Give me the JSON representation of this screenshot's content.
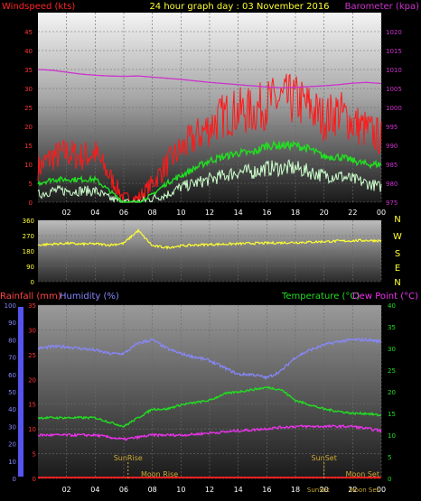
{
  "header": {
    "left_title": "Windspeed (kts)",
    "center_title": "24 hour graph day : 03 November 2016",
    "right_title": "Barometer (kpa)"
  },
  "colors": {
    "wind_gust": "#ff1a1a",
    "wind_avg": "#22dd22",
    "wind_min": "#ccffcc",
    "barometer": "#cc33cc",
    "direction": "#ffff33",
    "rain_axis": "#ff4444",
    "humidity": "#8888ff",
    "temperature": "#22dd22",
    "dewpoint": "#ee33ee",
    "rainfall": "#ff2222",
    "event": "#ccaa33"
  },
  "chart_data": [
    {
      "type": "line",
      "title": "24 hour graph day : 03 November 2016",
      "ylabel": "Windspeed (kts)",
      "y2label": "Barometer (kpa)",
      "ylim": [
        0,
        50
      ],
      "y2lim": [
        975,
        1025
      ],
      "yticks": [
        "0",
        "5",
        "10",
        "15",
        "20",
        "25",
        "30",
        "35",
        "40",
        "45"
      ],
      "y2ticks": [
        "975",
        "980",
        "985",
        "990",
        "995",
        "1000",
        "1005",
        "1010",
        "1015",
        "1020"
      ],
      "x_ticks": [
        "02",
        "04",
        "06",
        "08",
        "10",
        "12",
        "14",
        "16",
        "18",
        "20",
        "22",
        "00"
      ],
      "hours": [
        0,
        1,
        2,
        3,
        4,
        5,
        6,
        7,
        8,
        9,
        10,
        11,
        12,
        13,
        14,
        15,
        16,
        17,
        18,
        19,
        20,
        21,
        22,
        23,
        24
      ],
      "series": [
        {
          "role": "gust",
          "values": [
            9,
            12,
            13,
            12,
            13,
            7,
            1,
            1,
            5,
            10,
            14,
            17,
            20,
            23,
            24,
            24,
            26,
            27,
            27,
            25,
            22,
            24,
            21,
            19,
            17
          ]
        },
        {
          "role": "avg",
          "values": [
            5,
            6,
            6,
            6,
            6,
            3,
            0,
            0,
            2,
            5,
            7,
            9,
            11,
            12,
            13,
            13,
            15,
            15,
            15,
            14,
            12,
            12,
            11,
            10,
            10
          ]
        },
        {
          "role": "min",
          "values": [
            2,
            3,
            3,
            3,
            3,
            1,
            0,
            0,
            1,
            2,
            4,
            5,
            6,
            7,
            8,
            8,
            9,
            9,
            9,
            8,
            7,
            7,
            6,
            5,
            4
          ]
        },
        {
          "role": "barometer",
          "values": [
            1010,
            1009.8,
            1009.3,
            1008.8,
            1008.5,
            1008.3,
            1008.2,
            1008.3,
            1008,
            1007.7,
            1007.4,
            1007,
            1006.6,
            1006.3,
            1006,
            1005.7,
            1005.4,
            1005.2,
            1005.3,
            1005.5,
            1005.7,
            1006,
            1006.4,
            1006.6,
            1006.3
          ]
        }
      ]
    },
    {
      "type": "line",
      "ylim": [
        0,
        360
      ],
      "yticks": [
        "0",
        "90",
        "180",
        "270",
        "360"
      ],
      "compass": [
        "N",
        "W",
        "S",
        "E",
        "N"
      ],
      "hours": [
        0,
        1,
        2,
        3,
        4,
        5,
        6,
        7,
        8,
        9,
        10,
        11,
        12,
        13,
        14,
        15,
        16,
        17,
        18,
        19,
        20,
        21,
        22,
        23,
        24
      ],
      "series": [
        {
          "role": "direction",
          "values": [
            215,
            220,
            225,
            220,
            222,
            215,
            225,
            300,
            210,
            200,
            210,
            215,
            218,
            220,
            222,
            225,
            226,
            228,
            230,
            232,
            235,
            238,
            240,
            242,
            240
          ]
        }
      ]
    },
    {
      "type": "line",
      "ylabel": "Rainfall (mm)",
      "y2label": "Humidity (%)",
      "y3label": "Temperature (°C)",
      "y4label": "Dew Point (°C)",
      "ylim": [
        0,
        35
      ],
      "humidity_lim": [
        0,
        100
      ],
      "temp_lim": [
        0,
        40
      ],
      "rain_ticks": [
        "0",
        "5",
        "10",
        "15",
        "20",
        "25",
        "30",
        "35"
      ],
      "humidity_ticks": [
        "0",
        "10",
        "20",
        "30",
        "40",
        "50",
        "60",
        "70",
        "80",
        "90",
        "100"
      ],
      "temp_ticks": [
        "0",
        "5",
        "10",
        "15",
        "20",
        "25",
        "30",
        "35",
        "40"
      ],
      "x_ticks": [
        "02",
        "04",
        "06",
        "08",
        "10",
        "12",
        "14",
        "16",
        "18",
        "20",
        "22",
        "00"
      ],
      "hours": [
        0,
        1,
        2,
        3,
        4,
        5,
        6,
        7,
        8,
        9,
        10,
        11,
        12,
        13,
        14,
        15,
        16,
        17,
        18,
        19,
        20,
        21,
        22,
        23,
        24
      ],
      "series": [
        {
          "role": "humidity",
          "values": [
            75,
            76,
            76,
            75,
            74,
            72,
            72,
            78,
            80,
            75,
            72,
            70,
            68,
            64,
            60,
            60,
            58,
            62,
            70,
            74,
            77,
            79,
            80,
            80,
            79
          ]
        },
        {
          "role": "temperature",
          "values": [
            14,
            14,
            14,
            14,
            14,
            13,
            12,
            14,
            16,
            16,
            17,
            17.5,
            18,
            19.5,
            20,
            20.5,
            21,
            20.5,
            18,
            17,
            16,
            15.5,
            15,
            15,
            14.5
          ]
        },
        {
          "role": "dewpoint",
          "values": [
            10,
            10,
            10,
            10,
            10,
            9.5,
            9,
            9.5,
            10,
            10,
            10,
            10.2,
            10.5,
            10.7,
            11,
            11.2,
            11.5,
            11.8,
            12,
            12,
            12,
            12,
            12,
            11.5,
            11
          ]
        },
        {
          "role": "rainfall",
          "values": [
            0,
            0,
            0,
            0,
            0,
            0,
            0,
            0,
            0,
            0,
            0,
            0,
            0,
            0,
            0,
            0,
            0,
            0,
            0,
            0,
            0,
            0,
            0,
            0,
            0
          ]
        }
      ],
      "events": {
        "sunrise": {
          "label": "SunRise",
          "hour": 6.3
        },
        "sunset": {
          "label": "SunSet",
          "hour": 20
        },
        "moonrise": {
          "label": "Moon Rise",
          "hour": 8.5
        },
        "moonset": {
          "label": "Moon Set",
          "hour": 22.5
        },
        "sunset_bottom_label": "SunSet",
        "moonset_bottom_label": "Moon Set"
      }
    }
  ]
}
